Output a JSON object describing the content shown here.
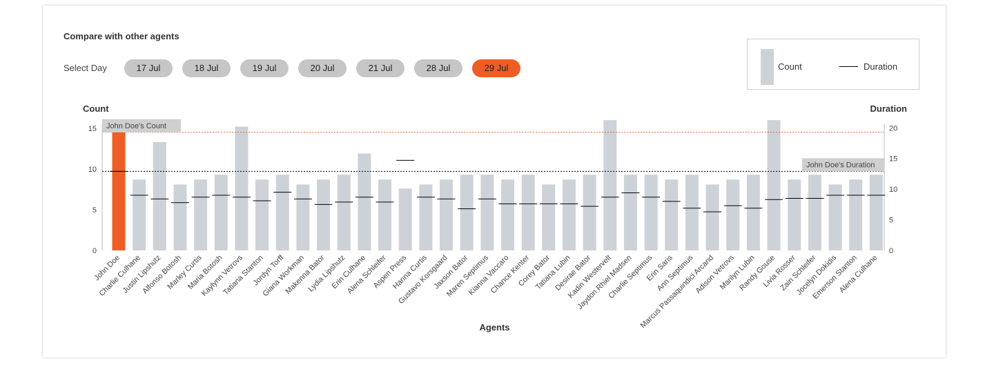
{
  "header": {
    "title": "Compare with other agents",
    "select_day_label": "Select Day"
  },
  "days": [
    {
      "label": "17 Jul",
      "active": false
    },
    {
      "label": "18 Jul",
      "active": false
    },
    {
      "label": "19 Jul",
      "active": false
    },
    {
      "label": "20 Jul",
      "active": false
    },
    {
      "label": "21 Jul",
      "active": false
    },
    {
      "label": "28 Jul",
      "active": false
    },
    {
      "label": "29 Jul",
      "active": true
    }
  ],
  "legend": {
    "count": "Count",
    "duration": "Duration"
  },
  "colors": {
    "highlight_bar": "#ec5e25",
    "bar": "#cdd2d8",
    "count_ref_line": "#ec5e25",
    "duration_ref_line": "#000000",
    "active_pill": "#ec5e25",
    "pill": "#c6c6c6"
  },
  "chart_data": {
    "type": "bar",
    "title": "",
    "xlabel": "Agents",
    "ylabel": "Count",
    "y2label": "Duration",
    "ylim": [
      0,
      15.5
    ],
    "y2lim": [
      0,
      20.6
    ],
    "yticks": [
      0,
      5,
      10,
      15
    ],
    "y2ticks": [
      0,
      5,
      10,
      15,
      20
    ],
    "highlight": "John Doe",
    "reference_lines": {
      "count": 14.5,
      "count_label": "John Doe's Count",
      "duration": 12.9,
      "duration_label": "John Doe's Duration"
    },
    "categories": [
      "John Doe",
      "Charlie Culhane",
      "Justin Lipshutz",
      "Alfonso Botosh",
      "Marley Curtis",
      "Maria Botosh",
      "Kaylynn Vetrovs",
      "Tatiana Stanton",
      "Jordyn Torff",
      "Giana Workman",
      "Makenna Bator",
      "Lydia Lipshutz",
      "Erin Culhane",
      "Alena Schleifer",
      "Aspen Press",
      "Hanna Curtis",
      "Gustavo Korsgaard",
      "Jaxson Bator",
      "Maren Septimus",
      "Kianna Vaccaro",
      "Chance Kenter",
      "Corey Bator",
      "Tatiana Lubin",
      "Desirae Bator",
      "Kadin Westervelt",
      "Jaydon Rhiel Madsen",
      "Charlie Septimus",
      "Erin Saris",
      "Ann Septimus",
      "Marcus Passaquindici Arcand",
      "Adison Vetrovs",
      "Marilyn Lubin",
      "Randy Gouse",
      "Livia Rosser",
      "Zain Schleifer",
      "Jocelyn Dokidis",
      "Emerson Stanton",
      "Alena Culhane"
    ],
    "series": [
      {
        "name": "Count",
        "values": [
          14.5,
          8.7,
          13.3,
          8.1,
          8.7,
          9.3,
          15.2,
          8.7,
          9.3,
          8.1,
          8.7,
          9.3,
          11.9,
          8.7,
          7.6,
          8.1,
          8.7,
          9.3,
          9.3,
          8.7,
          9.3,
          8.1,
          8.7,
          9.3,
          16.0,
          9.3,
          9.3,
          8.7,
          9.3,
          8.1,
          8.7,
          9.3,
          16.0,
          8.7,
          9.3,
          8.1,
          8.7,
          9.3
        ]
      },
      {
        "name": "Duration",
        "values": [
          12.9,
          9.0,
          8.4,
          7.8,
          8.7,
          9.0,
          8.7,
          8.1,
          9.5,
          8.4,
          7.5,
          7.9,
          8.7,
          7.9,
          14.7,
          8.7,
          8.4,
          6.8,
          8.4,
          7.6,
          7.6,
          7.6,
          7.6,
          7.2,
          8.7,
          9.4,
          8.7,
          8.0,
          6.9,
          6.3,
          7.3,
          6.9,
          8.3,
          8.5,
          8.5,
          9.0,
          9.0,
          9.0
        ]
      }
    ]
  }
}
